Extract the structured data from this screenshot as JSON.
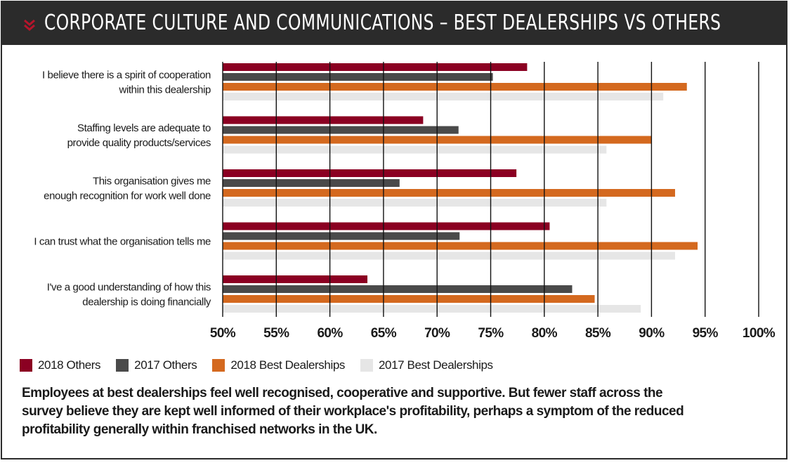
{
  "header": {
    "title": "CORPORATE CULTURE AND COMMUNICATIONS – BEST DEALERSHIPS VS OTHERS",
    "icon": "double-chevron-down-icon",
    "background": "#2b2b2b",
    "accent": "#b5152b"
  },
  "chart_data": {
    "type": "bar",
    "orientation": "horizontal",
    "categories": [
      [
        "I believe there is a spirit of cooperation",
        "within this dealership"
      ],
      [
        "Staffing levels are adequate to",
        "provide quality products/services"
      ],
      [
        "This organisation gives me",
        "enough recognition for work well done"
      ],
      [
        "I can trust what the organisation tells me"
      ],
      [
        "I've a good understanding of how this",
        "dealership is doing financially"
      ]
    ],
    "series": [
      {
        "name": "2018 Others",
        "color": "#8b0022",
        "values": [
          78.4,
          68.7,
          77.4,
          80.5,
          63.5
        ]
      },
      {
        "name": "2017 Others",
        "color": "#4a4a4a",
        "values": [
          75.2,
          72.0,
          66.5,
          72.1,
          82.6
        ]
      },
      {
        "name": "2018 Best Dealerships",
        "color": "#d4691f",
        "values": [
          93.3,
          90.0,
          92.2,
          94.3,
          84.7
        ]
      },
      {
        "name": "2017 Best Dealerships",
        "color": "#e6e6e6",
        "values": [
          91.1,
          85.8,
          85.8,
          92.2,
          89.0
        ]
      }
    ],
    "xlim": [
      50,
      100
    ],
    "xticks": [
      "50%",
      "55%",
      "60%",
      "65%",
      "70%",
      "75%",
      "80%",
      "85%",
      "90%",
      "95%",
      "100%"
    ],
    "grid": true,
    "legend": "bottom-left"
  },
  "caption": [
    "Employees at best dealerships feel well recognised, cooperative and supportive. But fewer staff across the",
    "survey believe they are kept well informed of their workplace's profitability, perhaps a symptom of the reduced",
    "profitability generally within franchised networks in the UK."
  ]
}
